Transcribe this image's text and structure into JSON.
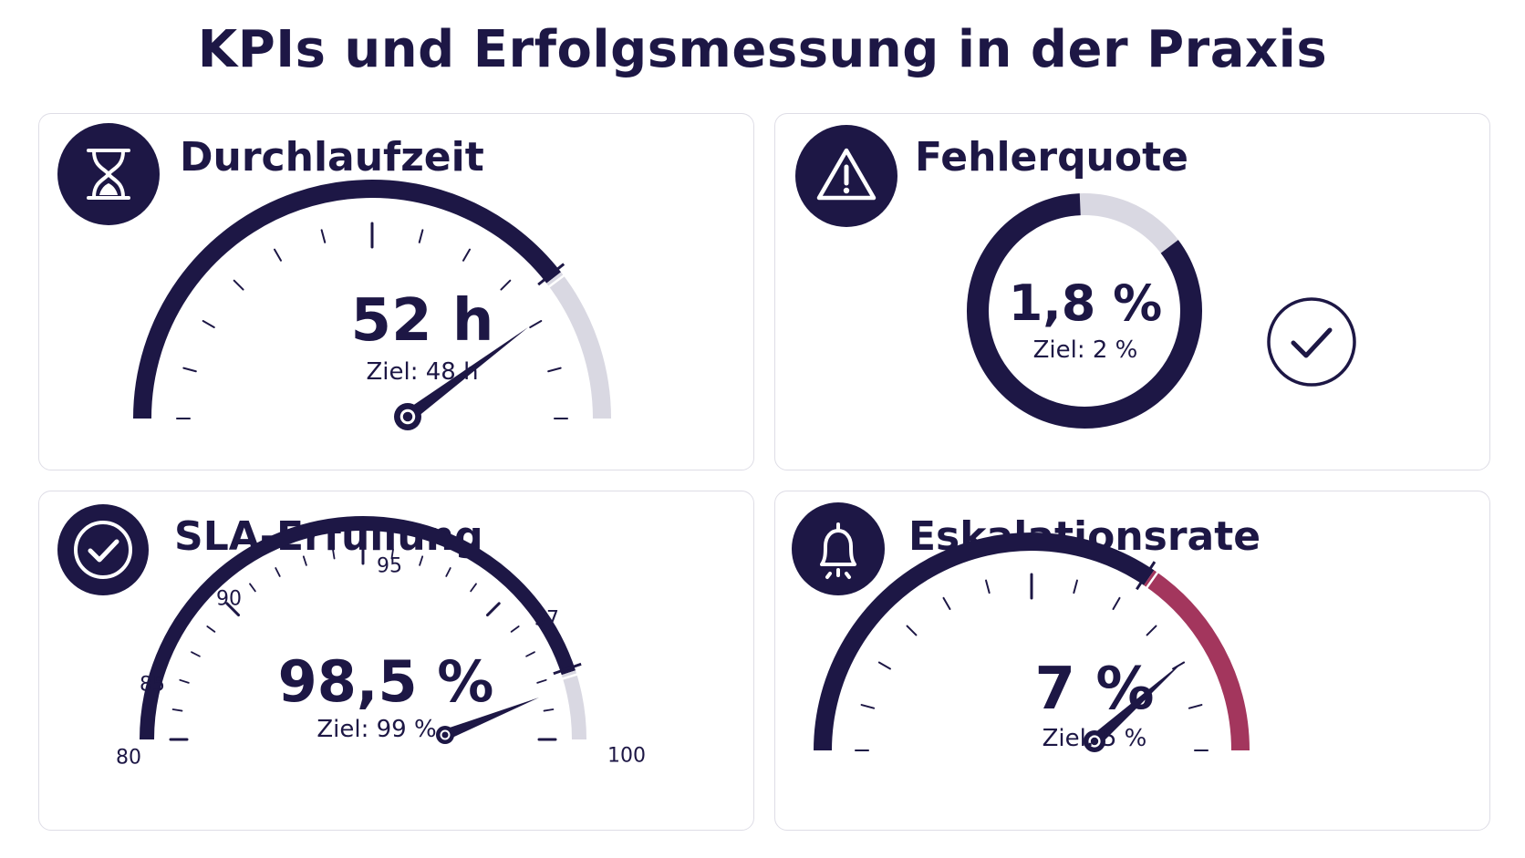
{
  "title": "KPIs und Erfolgsmessung in der Praxis",
  "colors": {
    "primary": "#1d1745",
    "track": "#d9d8e2",
    "warning": "#a3365d",
    "card_border": "#dedde6"
  },
  "cards": {
    "durchlaufzeit": {
      "title": "Durchlaufzeit",
      "icon": "hourglass-icon",
      "value": "52 h",
      "target": "Ziel: 48 h"
    },
    "fehlerquote": {
      "title": "Fehlerquote",
      "icon": "warning-triangle-icon",
      "value": "1,8 %",
      "target": "Ziel: 2 %",
      "status_icon": "check-circle-icon"
    },
    "sla": {
      "title": "SLA-Erfüllung",
      "icon": "check-circle-icon",
      "value": "98,5 %",
      "target": "Ziel: 99 %",
      "tick_labels": [
        "80",
        "85",
        "90",
        "95",
        "97",
        "100"
      ]
    },
    "eskalationsrate": {
      "title": "Eskalationsrate",
      "icon": "bell-icon",
      "value": "7 %",
      "target": "Ziel: 5 %"
    }
  },
  "chart_data": [
    {
      "type": "gauge",
      "title": "Durchlaufzeit",
      "value": 52,
      "unit": "h",
      "target": 48,
      "value_fraction": 0.79,
      "target_fraction": 0.79
    },
    {
      "type": "donut",
      "title": "Fehlerquote",
      "value": 1.8,
      "unit": "%",
      "target": 2,
      "filled_fraction": 0.86
    },
    {
      "type": "gauge",
      "title": "SLA-Erfüllung",
      "value": 98.5,
      "unit": "%",
      "target": 99,
      "range": [
        80,
        100
      ],
      "ticks": [
        80,
        85,
        90,
        95,
        97,
        100
      ]
    },
    {
      "type": "gauge",
      "title": "Eskalationsrate",
      "value": 7,
      "unit": "%",
      "target": 5,
      "target_fraction": 0.69,
      "value_fraction": 0.77
    }
  ]
}
